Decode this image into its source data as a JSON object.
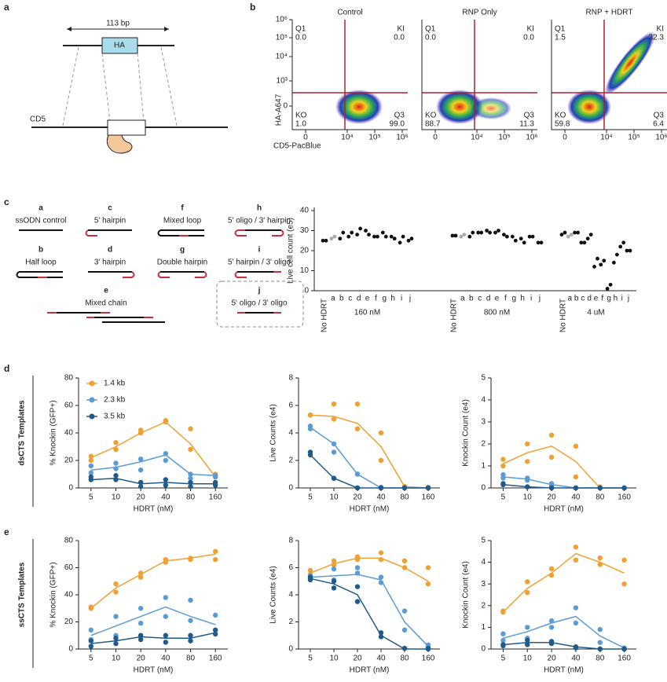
{
  "panels": {
    "a": {
      "label": "a",
      "span": "113 bp",
      "insert": "HA",
      "gene": "CD5"
    },
    "b": {
      "label": "b",
      "x_label": "CD5-PacBlue",
      "y_label": "HA-A647",
      "yticks": [
        "10⁶",
        "10⁵",
        "10⁴",
        "10³",
        "0"
      ],
      "xticks": [
        "0",
        "10⁴",
        "10⁵",
        "10⁶"
      ],
      "plots": [
        {
          "title": "Control",
          "Q1": [
            "Q1",
            "0.0"
          ],
          "KI": [
            "KI",
            "0.0"
          ],
          "KO": [
            "KO",
            "1.0"
          ],
          "Q3": [
            "Q3",
            "99.0"
          ]
        },
        {
          "title": "RNP Only",
          "Q1": [
            "Q1",
            "0.0"
          ],
          "KI": [
            "KI",
            "0.0"
          ],
          "KO": [
            "KO",
            "88.7"
          ],
          "Q3": [
            "Q3",
            "11.3"
          ]
        },
        {
          "title": "RNP + HDRT",
          "Q1": [
            "Q1",
            "1.5"
          ],
          "KI": [
            "KI",
            "32.3"
          ],
          "KO": [
            "KO",
            "59.8"
          ],
          "Q3": [
            "Q3",
            "6.4"
          ]
        }
      ]
    },
    "c": {
      "label": "c",
      "templates": [
        {
          "letter": "a",
          "name": "ssODN control"
        },
        {
          "letter": "c",
          "name": "5' hairpin"
        },
        {
          "letter": "f",
          "name": "Mixed loop"
        },
        {
          "letter": "h",
          "name": "5' oligo / 3' hairpin"
        },
        {
          "letter": "b",
          "name": "Half loop"
        },
        {
          "letter": "d",
          "name": "3' hairpin"
        },
        {
          "letter": "g",
          "name": "Double hairpin"
        },
        {
          "letter": "i",
          "name": "5' hairpin / 3' oligo"
        },
        {
          "letter": "e",
          "name": "Mixed chain"
        },
        {
          "letter": "j",
          "name": "5' oligo / 3' oligo"
        }
      ]
    },
    "d": {
      "label": "d",
      "title": "dsCTS Templates"
    },
    "e": {
      "label": "e",
      "title": "ssCTS Templates"
    }
  },
  "chart_data": [
    {
      "type": "strip",
      "ylabel": "Live cell count (e5)",
      "ylim": [
        0,
        40
      ],
      "yticks": [
        0,
        10,
        20,
        30,
        40
      ],
      "categories": [
        "No HDRT",
        "a",
        "b",
        "c",
        "d",
        "e",
        "f",
        "g",
        "h",
        "i",
        "j"
      ],
      "colors": [
        "#111",
        "#aaa",
        "#111",
        "#111",
        "#111",
        "#111",
        "#111",
        "#111",
        "#111",
        "#111",
        "#111"
      ],
      "groups": [
        {
          "name": "160 nM",
          "values": [
            [
              25,
              25
            ],
            [
              26,
              27
            ],
            [
              26,
              29
            ],
            [
              27,
              29
            ],
            [
              28,
              31
            ],
            [
              30,
              28
            ],
            [
              27,
              27
            ],
            [
              29,
              27
            ],
            [
              27,
              26
            ],
            [
              24,
              27
            ],
            [
              25,
              26
            ]
          ]
        },
        {
          "name": "800 nM",
          "values": [
            [
              27.5,
              27.5
            ],
            [
              27,
              28
            ],
            [
              27,
              29
            ],
            [
              29,
              29
            ],
            [
              30,
              29
            ],
            [
              29,
              30
            ],
            [
              28,
              27
            ],
            [
              27,
              25
            ],
            [
              26,
              24
            ],
            [
              27,
              27
            ],
            [
              24,
              24
            ]
          ]
        },
        {
          "name": "4 uM",
          "values": [
            [
              28,
              29
            ],
            [
              27,
              28
            ],
            [
              29,
              29
            ],
            [
              24,
              24
            ],
            [
              26,
              28
            ],
            [
              12,
              16
            ],
            [
              13,
              15
            ],
            [
              1,
              3
            ],
            [
              14,
              18
            ],
            [
              22,
              24
            ],
            [
              20,
              20
            ]
          ]
        }
      ]
    },
    {
      "type": "line",
      "xlabel": "HDRT (nM)",
      "ylabel": "% Knockin (GFP+)",
      "categories": [
        "5",
        "10",
        "20",
        "40",
        "80",
        "160"
      ],
      "ylim": [
        0,
        80
      ],
      "yticks": [
        0,
        20,
        40,
        60,
        80
      ],
      "legend": "upper left",
      "series": [
        {
          "name": "1.4 kb",
          "color": "#f0a030",
          "values": [
            22,
            30,
            40,
            48,
            32,
            8
          ],
          "points": [
            [
              20,
              23
            ],
            [
              28,
              33
            ],
            [
              40,
              42
            ],
            [
              48,
              49
            ],
            [
              28,
              43
            ],
            [
              8,
              10
            ]
          ]
        },
        {
          "name": "2.3 kb",
          "color": "#5b9bd5",
          "values": [
            13,
            15,
            19,
            24,
            10,
            9
          ],
          "points": [
            [
              11,
              16
            ],
            [
              14,
              18
            ],
            [
              13,
              21
            ],
            [
              20,
              25
            ],
            [
              7,
              10
            ],
            [
              8,
              9
            ]
          ]
        },
        {
          "name": "3.5 kb",
          "color": "#1f5a8a",
          "values": [
            6,
            7,
            3,
            4,
            3,
            3
          ],
          "points": [
            [
              6,
              8
            ],
            [
              6,
              9
            ],
            [
              1,
              4
            ],
            [
              2,
              6
            ],
            [
              1,
              4
            ],
            [
              2,
              4
            ]
          ]
        }
      ]
    },
    {
      "type": "line",
      "xlabel": "HDRT (nM)",
      "ylabel": "Live Counts (e4)",
      "categories": [
        "5",
        "10",
        "20",
        "40",
        "80",
        "160"
      ],
      "ylim": [
        0,
        8
      ],
      "yticks": [
        0,
        2,
        4,
        6,
        8
      ],
      "series": [
        {
          "color": "#f0a030",
          "values": [
            5.3,
            5.2,
            4.7,
            3.0,
            0.1,
            0
          ],
          "points": [
            [
              5.3,
              5.3
            ],
            [
              5.0,
              6.1
            ],
            [
              4.3,
              6.1
            ],
            [
              2.0,
              4.0
            ],
            [
              0.1,
              0.1
            ],
            [
              0.05,
              0.05
            ]
          ]
        },
        {
          "color": "#5b9bd5",
          "values": [
            4.4,
            3.2,
            1.0,
            0,
            0,
            0
          ],
          "points": [
            [
              4.3,
              4.5
            ],
            [
              3.2,
              2.6
            ],
            [
              1.0,
              1.0
            ],
            [
              0,
              0.05
            ],
            [
              0,
              0
            ],
            [
              0,
              0
            ]
          ]
        },
        {
          "color": "#1f5a8a",
          "values": [
            2.4,
            0.7,
            0,
            0,
            0,
            0
          ],
          "points": [
            [
              2.4,
              2.6
            ],
            [
              0.7,
              0.7
            ],
            [
              0,
              0
            ],
            [
              0,
              0
            ],
            [
              0,
              0
            ],
            [
              0,
              0
            ]
          ]
        }
      ]
    },
    {
      "type": "line",
      "xlabel": "HDRT (nM)",
      "ylabel": "Knockin Count (e4)",
      "categories": [
        "5",
        "10",
        "20",
        "40",
        "80",
        "160"
      ],
      "ylim": [
        0,
        5
      ],
      "yticks": [
        0,
        1,
        2,
        3,
        4,
        5
      ],
      "series": [
        {
          "color": "#f0a030",
          "values": [
            1.1,
            1.6,
            1.9,
            1.2,
            0,
            0
          ],
          "points": [
            [
              1.0,
              1.3
            ],
            [
              1.2,
              2.0
            ],
            [
              1.4,
              2.4
            ],
            [
              0.5,
              1.9
            ],
            [
              0,
              0.05
            ],
            [
              0,
              0
            ]
          ]
        },
        {
          "color": "#5b9bd5",
          "values": [
            0.5,
            0.4,
            0.15,
            0,
            0,
            0
          ],
          "points": [
            [
              0.45,
              0.6
            ],
            [
              0.35,
              0.45
            ],
            [
              0.1,
              0.2
            ],
            [
              0,
              0
            ],
            [
              0,
              0
            ],
            [
              0,
              0
            ]
          ]
        },
        {
          "color": "#1f5a8a",
          "values": [
            0.15,
            0.05,
            0,
            0,
            0,
            0
          ],
          "points": [
            [
              0.15,
              0.2
            ],
            [
              0.05,
              0.05
            ],
            [
              0,
              0
            ],
            [
              0,
              0
            ],
            [
              0,
              0
            ],
            [
              0,
              0
            ]
          ]
        }
      ]
    },
    {
      "type": "line",
      "xlabel": "HDRT (nM)",
      "ylabel": "% Knockin (GFP+)",
      "categories": [
        "5",
        "10",
        "20",
        "40",
        "80",
        "160"
      ],
      "ylim": [
        0,
        80
      ],
      "yticks": [
        0,
        20,
        40,
        60,
        80
      ],
      "series": [
        {
          "color": "#f0a030",
          "values": [
            30,
            45,
            55,
            65,
            67,
            70
          ],
          "points": [
            [
              30,
              31
            ],
            [
              42,
              48
            ],
            [
              53,
              56
            ],
            [
              64,
              66
            ],
            [
              66,
              67
            ],
            [
              66,
              72
            ]
          ]
        },
        {
          "color": "#5b9bd5",
          "values": [
            10,
            17,
            24,
            31,
            24,
            18
          ],
          "points": [
            [
              7,
              14
            ],
            [
              10,
              24
            ],
            [
              19,
              30
            ],
            [
              24,
              38
            ],
            [
              21,
              36
            ],
            [
              14,
              25
            ]
          ]
        },
        {
          "color": "#1f5a8a",
          "values": [
            4,
            6,
            9,
            8,
            8,
            12
          ],
          "points": [
            [
              2,
              6
            ],
            [
              4,
              8
            ],
            [
              7,
              10
            ],
            [
              5,
              10
            ],
            [
              6,
              10
            ],
            [
              11,
              14
            ]
          ]
        }
      ]
    },
    {
      "type": "line",
      "xlabel": "HDRT (nM)",
      "ylabel": "Live Counts (e4)",
      "categories": [
        "5",
        "10",
        "20",
        "40",
        "80",
        "160"
      ],
      "ylim": [
        0,
        8
      ],
      "yticks": [
        0,
        2,
        4,
        6,
        8
      ],
      "series": [
        {
          "color": "#f0a030",
          "values": [
            5.6,
            6.3,
            6.7,
            6.7,
            6.0,
            5.0
          ],
          "points": [
            [
              5.5,
              5.8
            ],
            [
              6.2,
              6.5
            ],
            [
              6.6,
              6.8
            ],
            [
              6.6,
              7.1
            ],
            [
              6.0,
              6.5
            ],
            [
              4.8,
              6.0
            ]
          ]
        },
        {
          "color": "#5b9bd5",
          "values": [
            5.3,
            5.4,
            5.5,
            5.1,
            2.0,
            0.2
          ],
          "points": [
            [
              5.2,
              5.4
            ],
            [
              5.1,
              5.9
            ],
            [
              5.6,
              6.0
            ],
            [
              4.9,
              5.3
            ],
            [
              1.4,
              2.8
            ],
            [
              0.1,
              0.3
            ]
          ]
        },
        {
          "color": "#1f5a8a",
          "values": [
            5.2,
            4.8,
            4.0,
            1.0,
            0,
            0
          ],
          "points": [
            [
              5.1,
              5.3
            ],
            [
              4.5,
              5.0
            ],
            [
              3.5,
              4.6
            ],
            [
              0.9,
              1.2
            ],
            [
              0.05,
              0.05
            ],
            [
              0,
              0.05
            ]
          ]
        }
      ]
    },
    {
      "type": "line",
      "xlabel": "HDRT (nM)",
      "ylabel": "Knockin Count (e4)",
      "categories": [
        "5",
        "10",
        "20",
        "40",
        "80",
        "160"
      ],
      "ylim": [
        0,
        5
      ],
      "yticks": [
        0,
        1,
        2,
        3,
        4,
        5
      ],
      "series": [
        {
          "color": "#f0a030",
          "values": [
            1.7,
            2.8,
            3.5,
            4.4,
            4.0,
            3.5
          ],
          "points": [
            [
              1.7,
              1.75
            ],
            [
              2.6,
              3.1
            ],
            [
              3.4,
              3.7
            ],
            [
              4.1,
              4.7
            ],
            [
              3.9,
              4.2
            ],
            [
              3.0,
              4.1
            ]
          ]
        },
        {
          "color": "#5b9bd5",
          "values": [
            0.5,
            0.8,
            1.2,
            1.5,
            0.6,
            0.05
          ],
          "points": [
            [
              0.4,
              0.7
            ],
            [
              0.5,
              1.0
            ],
            [
              1.0,
              1.3
            ],
            [
              1.2,
              1.9
            ],
            [
              0.3,
              0.9
            ],
            [
              0,
              0.05
            ]
          ]
        },
        {
          "color": "#1f5a8a",
          "values": [
            0.2,
            0.3,
            0.3,
            0.1,
            0,
            0
          ],
          "points": [
            [
              0.15,
              0.2
            ],
            [
              0.2,
              0.4
            ],
            [
              0.25,
              0.35
            ],
            [
              0.05,
              0.1
            ],
            [
              0,
              0
            ],
            [
              0,
              0
            ]
          ]
        }
      ]
    }
  ]
}
